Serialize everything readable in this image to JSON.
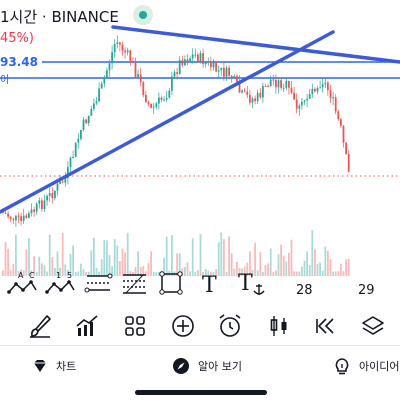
{
  "header": {
    "title": "1시간 · BINANCE",
    "change_pct": "45%)",
    "price_tag": "93.48",
    "price_sub": "이"
  },
  "colors": {
    "up": "#26a69a",
    "down": "#ef5350",
    "trendline": "#3d5bd9",
    "hline": "#2962ff",
    "accent": "#131722"
  },
  "x_axis": {
    "labels": [
      "28",
      "29"
    ]
  },
  "drawing_tools": [
    {
      "name": "abcd-pattern-icon",
      "label": "A C"
    },
    {
      "name": "elliott-wave-icon",
      "label": "1 5"
    },
    {
      "name": "fib-retracement-icon",
      "label": ""
    },
    {
      "name": "fib-extension-icon",
      "label": ""
    },
    {
      "name": "rectangle-icon",
      "label": ""
    },
    {
      "name": "text-tool-icon",
      "label": "T"
    },
    {
      "name": "anchored-text-icon",
      "label": "T"
    }
  ],
  "toolbar": [
    {
      "name": "brush-icon"
    },
    {
      "name": "indicators-icon"
    },
    {
      "name": "layouts-icon"
    },
    {
      "name": "add-icon"
    },
    {
      "name": "alarm-icon"
    },
    {
      "name": "candle-type-icon"
    },
    {
      "name": "replay-icon"
    },
    {
      "name": "layers-icon"
    }
  ],
  "nav": {
    "chart": "차트",
    "learn": "알아 보기",
    "ideas": "아이디어"
  }
}
